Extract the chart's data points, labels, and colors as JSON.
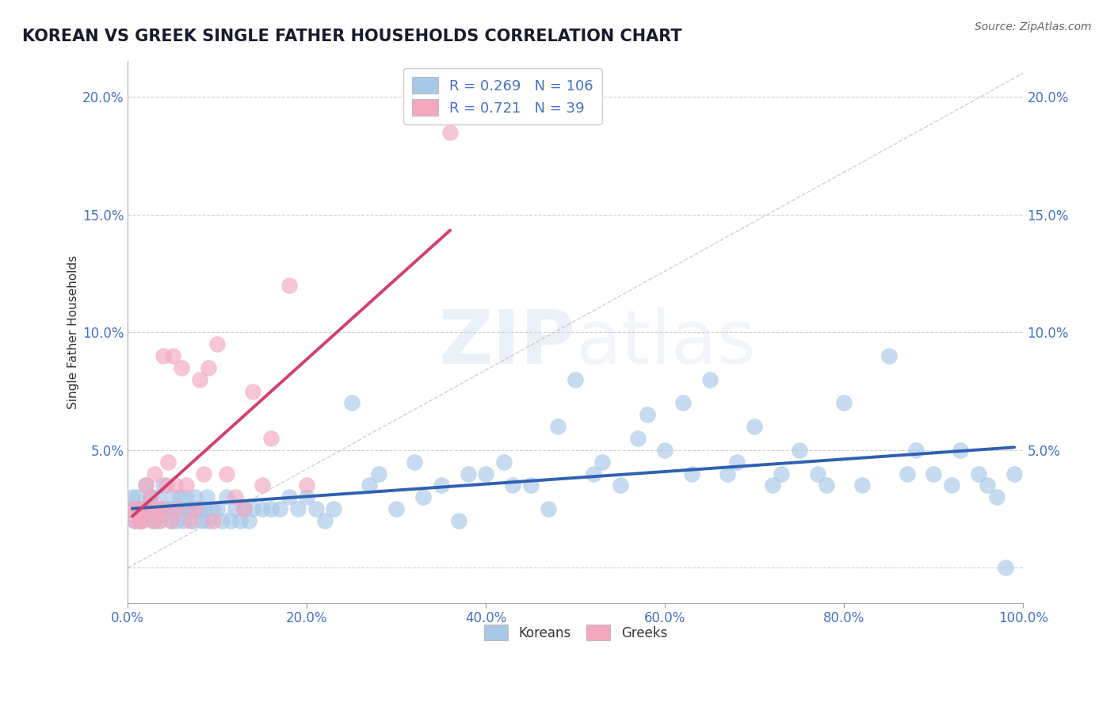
{
  "title": "KOREAN VS GREEK SINGLE FATHER HOUSEHOLDS CORRELATION CHART",
  "source": "Source: ZipAtlas.com",
  "ylabel": "Single Father Households",
  "xlim": [
    0,
    1.0
  ],
  "ylim": [
    -0.015,
    0.215
  ],
  "xticks": [
    0.0,
    0.2,
    0.4,
    0.6,
    0.8,
    1.0
  ],
  "xticklabels": [
    "0.0%",
    "20.0%",
    "40.0%",
    "60.0%",
    "80.0%",
    "100.0%"
  ],
  "yticks": [
    0.0,
    0.05,
    0.1,
    0.15,
    0.2
  ],
  "yticklabels": [
    "",
    "5.0%",
    "10.0%",
    "15.0%",
    "20.0%"
  ],
  "korean_R": 0.269,
  "korean_N": 106,
  "greek_R": 0.721,
  "greek_N": 39,
  "korean_color": "#a8c8e8",
  "greek_color": "#f4a8c0",
  "korean_line_color": "#3060b0",
  "greek_line_color": "#d04070",
  "background_color": "#ffffff",
  "grid_color": "#cccccc",
  "korean_scatter_x": [
    0.005,
    0.008,
    0.01,
    0.012,
    0.015,
    0.018,
    0.02,
    0.022,
    0.025,
    0.028,
    0.03,
    0.033,
    0.035,
    0.038,
    0.04,
    0.042,
    0.045,
    0.048,
    0.05,
    0.053,
    0.055,
    0.058,
    0.06,
    0.063,
    0.065,
    0.068,
    0.07,
    0.073,
    0.075,
    0.078,
    0.08,
    0.083,
    0.085,
    0.088,
    0.09,
    0.095,
    0.1,
    0.105,
    0.11,
    0.115,
    0.12,
    0.125,
    0.13,
    0.135,
    0.14,
    0.15,
    0.16,
    0.17,
    0.18,
    0.19,
    0.2,
    0.21,
    0.22,
    0.23,
    0.25,
    0.27,
    0.28,
    0.3,
    0.32,
    0.33,
    0.35,
    0.37,
    0.38,
    0.4,
    0.42,
    0.43,
    0.45,
    0.47,
    0.48,
    0.5,
    0.52,
    0.53,
    0.55,
    0.57,
    0.58,
    0.6,
    0.62,
    0.63,
    0.65,
    0.67,
    0.68,
    0.7,
    0.72,
    0.73,
    0.75,
    0.77,
    0.78,
    0.8,
    0.82,
    0.85,
    0.87,
    0.88,
    0.9,
    0.92,
    0.93,
    0.95,
    0.96,
    0.97,
    0.98,
    0.99,
    0.005,
    0.01,
    0.015,
    0.02,
    0.025,
    0.03
  ],
  "korean_scatter_y": [
    0.025,
    0.02,
    0.03,
    0.025,
    0.02,
    0.025,
    0.035,
    0.025,
    0.03,
    0.02,
    0.025,
    0.03,
    0.02,
    0.025,
    0.035,
    0.025,
    0.025,
    0.02,
    0.03,
    0.025,
    0.02,
    0.03,
    0.025,
    0.02,
    0.03,
    0.025,
    0.025,
    0.02,
    0.03,
    0.025,
    0.025,
    0.02,
    0.025,
    0.03,
    0.02,
    0.025,
    0.025,
    0.02,
    0.03,
    0.02,
    0.025,
    0.02,
    0.025,
    0.02,
    0.025,
    0.025,
    0.025,
    0.025,
    0.03,
    0.025,
    0.03,
    0.025,
    0.02,
    0.025,
    0.07,
    0.035,
    0.04,
    0.025,
    0.045,
    0.03,
    0.035,
    0.02,
    0.04,
    0.04,
    0.045,
    0.035,
    0.035,
    0.025,
    0.06,
    0.08,
    0.04,
    0.045,
    0.035,
    0.055,
    0.065,
    0.05,
    0.07,
    0.04,
    0.08,
    0.04,
    0.045,
    0.06,
    0.035,
    0.04,
    0.05,
    0.04,
    0.035,
    0.07,
    0.035,
    0.09,
    0.04,
    0.05,
    0.04,
    0.035,
    0.05,
    0.04,
    0.035,
    0.03,
    0.0,
    0.04,
    0.03,
    0.025,
    0.02,
    0.025,
    0.03,
    0.02
  ],
  "greek_scatter_x": [
    0.005,
    0.008,
    0.01,
    0.013,
    0.015,
    0.018,
    0.02,
    0.022,
    0.025,
    0.028,
    0.03,
    0.033,
    0.035,
    0.038,
    0.04,
    0.043,
    0.045,
    0.048,
    0.05,
    0.053,
    0.055,
    0.06,
    0.065,
    0.07,
    0.075,
    0.08,
    0.085,
    0.09,
    0.095,
    0.1,
    0.11,
    0.12,
    0.13,
    0.14,
    0.15,
    0.16,
    0.18,
    0.2,
    0.36
  ],
  "greek_scatter_y": [
    0.025,
    0.02,
    0.025,
    0.02,
    0.02,
    0.025,
    0.035,
    0.025,
    0.03,
    0.02,
    0.04,
    0.025,
    0.02,
    0.025,
    0.09,
    0.035,
    0.045,
    0.02,
    0.09,
    0.035,
    0.025,
    0.085,
    0.035,
    0.02,
    0.025,
    0.08,
    0.04,
    0.085,
    0.02,
    0.095,
    0.04,
    0.03,
    0.025,
    0.075,
    0.035,
    0.055,
    0.12,
    0.035,
    0.185
  ]
}
